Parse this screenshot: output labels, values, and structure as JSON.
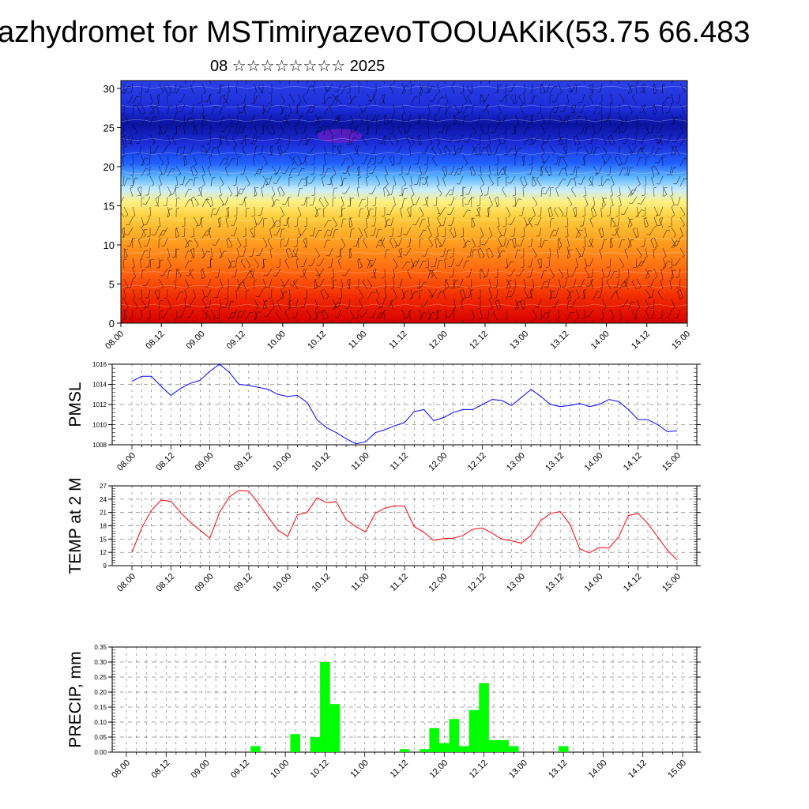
{
  "title": "azhydromet for MSTimiryazevoTOOUAKiK(53.75 66.483",
  "subtitle": "08 ☆☆☆☆☆☆☆☆ 2025",
  "colors": {
    "pmsl": "#0000ff",
    "temp": "#ff0000",
    "precip": "#00ff00",
    "section_top": "#1c30c8",
    "section_mid": "#ffe060",
    "section_bottom": "#e81800"
  },
  "chart_data": [
    {
      "type": "heatmap",
      "name": "vertical cross-section",
      "x_ticks": [
        "08.00",
        "08.12",
        "09.00",
        "09.12",
        "10.00",
        "10.12",
        "11.00",
        "11.12",
        "12.00",
        "12.12",
        "13.00",
        "13.12",
        "14.00",
        "14.12",
        "15.00"
      ],
      "y_ticks": [
        "0",
        "5",
        "10",
        "15",
        "20",
        "25",
        "30"
      ],
      "ylim": [
        0,
        31
      ],
      "overlay": "wind barbs"
    },
    {
      "type": "line",
      "ylabel": "PMSL",
      "ylim": [
        1008,
        1016
      ],
      "y_ticks": [
        "1008",
        "1010",
        "1012",
        "1014",
        "1016"
      ],
      "x_ticks": [
        "08.00",
        "08.12",
        "09.00",
        "09.12",
        "10.00",
        "10.12",
        "11.00",
        "11.12",
        "12.00",
        "12.12",
        "13.00",
        "13.12",
        "14.00",
        "14.12",
        "15.00"
      ],
      "x_hours": [
        0,
        3,
        6,
        9,
        12,
        15,
        18,
        21,
        24,
        27,
        30,
        33,
        36,
        39,
        42,
        45,
        48,
        51,
        54,
        57,
        60,
        63,
        66,
        69,
        72,
        75,
        78,
        81,
        84,
        87,
        90,
        93,
        96,
        99,
        102,
        105,
        108,
        111,
        114,
        117,
        120,
        123,
        126,
        129,
        132,
        135,
        138,
        141,
        144,
        147,
        150,
        153,
        156,
        159,
        162,
        165,
        168
      ],
      "values": [
        1014.3,
        1014.8,
        1014.8,
        1013.8,
        1012.9,
        1013.6,
        1014.1,
        1014.4,
        1015.3,
        1016.0,
        1015.2,
        1014.0,
        1013.9,
        1013.7,
        1013.5,
        1013.0,
        1012.8,
        1012.9,
        1012.2,
        1010.5,
        1009.7,
        1009.2,
        1008.6,
        1008.1,
        1008.3,
        1009.2,
        1009.5,
        1009.9,
        1010.2,
        1011.3,
        1011.5,
        1010.4,
        1010.7,
        1011.2,
        1011.5,
        1011.5,
        1012.0,
        1012.5,
        1012.4,
        1011.9,
        1012.7,
        1013.5,
        1012.8,
        1012.0,
        1011.8,
        1011.9,
        1012.1,
        1011.8,
        1012.0,
        1012.5,
        1012.3,
        1011.5,
        1010.5,
        1010.5,
        1010.0,
        1009.3,
        1009.4
      ]
    },
    {
      "type": "line",
      "ylabel": "TEMP at 2 M",
      "ylim": [
        9,
        27
      ],
      "y_ticks": [
        "9",
        "12",
        "15",
        "18",
        "21",
        "24",
        "27"
      ],
      "x_ticks": [
        "08.00",
        "08.12",
        "09.00",
        "09.12",
        "10.00",
        "10.12",
        "11.00",
        "11.12",
        "12.00",
        "12.12",
        "13.00",
        "13.12",
        "14.00",
        "14.12",
        "15.00"
      ],
      "x_hours": [
        0,
        3,
        6,
        9,
        12,
        15,
        18,
        21,
        24,
        27,
        30,
        33,
        36,
        39,
        42,
        45,
        48,
        51,
        54,
        57,
        60,
        63,
        66,
        69,
        72,
        75,
        78,
        81,
        84,
        87,
        90,
        93,
        96,
        99,
        102,
        105,
        108,
        111,
        114,
        117,
        120,
        123,
        126,
        129,
        132,
        135,
        138,
        141,
        144,
        147,
        150,
        153,
        156,
        159,
        162,
        165,
        168
      ],
      "values": [
        12.0,
        17.5,
        21.5,
        23.8,
        23.5,
        21.0,
        18.8,
        17.0,
        15.2,
        21.0,
        24.5,
        26.0,
        25.8,
        23.0,
        20.0,
        17.0,
        15.6,
        20.5,
        21.0,
        24.3,
        23.2,
        23.4,
        19.4,
        17.8,
        16.6,
        20.8,
        22.0,
        22.5,
        22.4,
        17.8,
        16.5,
        14.7,
        15.1,
        15.2,
        15.8,
        17.2,
        17.5,
        16.3,
        15.0,
        14.6,
        14.1,
        15.8,
        19.2,
        20.8,
        21.2,
        18.3,
        12.8,
        11.9,
        13.1,
        13.0,
        15.5,
        20.3,
        20.8,
        18.5,
        15.5,
        12.5,
        10.3
      ]
    },
    {
      "type": "bar",
      "ylabel": "PRECIP, mm",
      "ylim": [
        0,
        0.35
      ],
      "y_ticks": [
        "0.00",
        "0.05",
        "0.10",
        "0.15",
        "0.20",
        "0.25",
        "0.30",
        "0.35"
      ],
      "x_ticks": [
        "08.00",
        "08.12",
        "09.00",
        "09.12",
        "10.00",
        "10.12",
        "11.00",
        "11.12",
        "12.00",
        "12.12",
        "13.00",
        "13.12",
        "14.00",
        "14.12",
        "15.00"
      ],
      "x_hours": [
        39,
        51,
        57,
        60,
        63,
        84,
        90,
        93,
        96,
        99,
        102,
        105,
        108,
        111,
        114,
        117,
        132
      ],
      "values": [
        0.02,
        0.06,
        0.05,
        0.3,
        0.16,
        0.01,
        0.01,
        0.08,
        0.03,
        0.11,
        0.02,
        0.14,
        0.23,
        0.04,
        0.04,
        0.02,
        0.02
      ]
    }
  ]
}
